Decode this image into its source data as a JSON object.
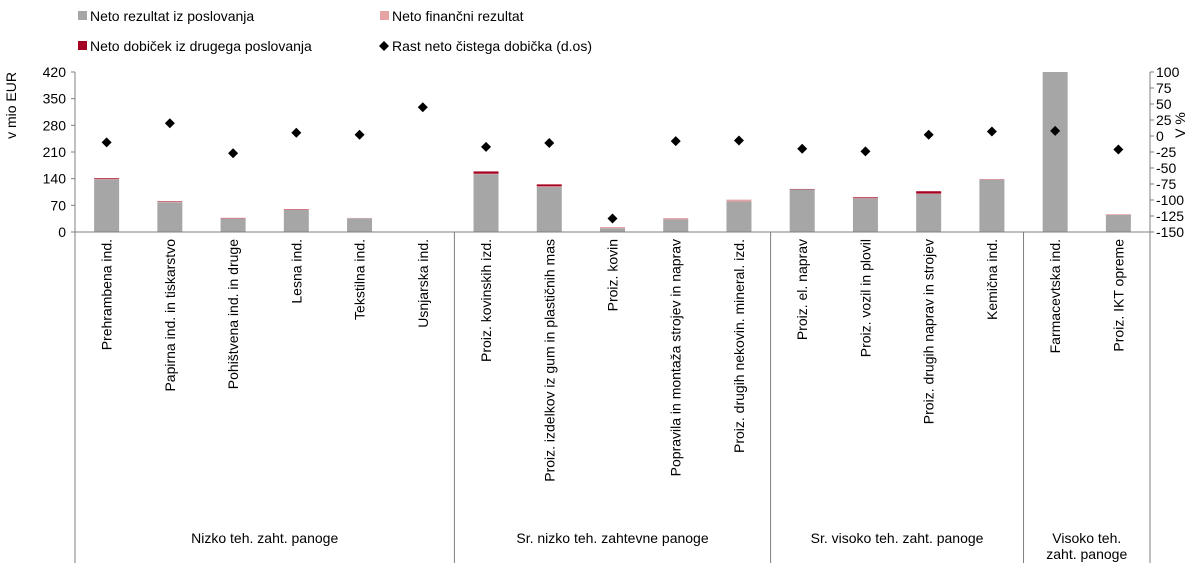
{
  "chart_data": {
    "type": "bar",
    "stacked": true,
    "ylabel": "v mio EUR",
    "y2label": "V %",
    "ylim": [
      0,
      420
    ],
    "y2lim": [
      -150,
      100
    ],
    "yticks": [
      "0",
      "70",
      "140",
      "210",
      "280",
      "350",
      "420"
    ],
    "y2ticks": [
      "-150",
      "-125",
      "-100",
      "-75",
      "-50",
      "-25",
      "0",
      "25",
      "50",
      "75",
      "100"
    ],
    "legend_position": "top-left",
    "grid": false,
    "categories": [
      "Prehrambena ind.",
      "Papirna ind. in tiskarstvo",
      "Pohištvena ind. in druge",
      "Lesna ind.",
      "Tekstilna ind.",
      "Usnjarska ind.",
      "Proiz. kovinskih izd.",
      "Proiz. izdelkov iz gum in plastičnih mas",
      "Proiz. kovin",
      "Popravila in montaža strojev in naprav",
      "Proiz. drugih nekovin. mineral. izd.",
      "Proiz. el. naprav",
      "Proiz. vozil in plovil",
      "Proiz. drugih naprav in strojev",
      "Kemična ind.",
      "Farmacevtska ind.",
      "Proiz. IKT opreme"
    ],
    "groups": [
      {
        "label": "Nizko teh. zaht. panoge",
        "count": 6
      },
      {
        "label": "Sr. nizko teh. zahtevne panoge",
        "count": 5
      },
      {
        "label": "Sr. visoko teh. zaht. panoge",
        "count": 4
      },
      {
        "label": "Visoko teh. zaht. panoge",
        "count": 2
      }
    ],
    "series": [
      {
        "name": "Neto rezultat iz poslovanja",
        "kind": "bar",
        "color": "#a6a6a6",
        "values": [
          138,
          78,
          35,
          58,
          36,
          0,
          152,
          118,
          10,
          33,
          80,
          112,
          88,
          100,
          137,
          440,
          45
        ]
      },
      {
        "name": "Neto finančni rezultat",
        "kind": "bar",
        "color": "#e6a3a3",
        "values": [
          1,
          2,
          1,
          1,
          1,
          1,
          1,
          2,
          3,
          1,
          5,
          0,
          1,
          1,
          0,
          0,
          2
        ]
      },
      {
        "name": "Neto dobiček iz drugega poslovanja",
        "kind": "bar",
        "color": "#a50021",
        "values": [
          2,
          1,
          1,
          1,
          0,
          0,
          6,
          5,
          0,
          1,
          0,
          1,
          2,
          6,
          1,
          0,
          0
        ]
      },
      {
        "name": "Rast neto čistega dobička (d.os)",
        "kind": "scatter",
        "axis": "secondary",
        "color": "#000000",
        "values": [
          -10,
          20,
          -27,
          5,
          2,
          45,
          -17,
          -11,
          -129,
          -8,
          -7,
          -20,
          -24,
          2,
          7,
          8,
          -21
        ]
      }
    ]
  }
}
